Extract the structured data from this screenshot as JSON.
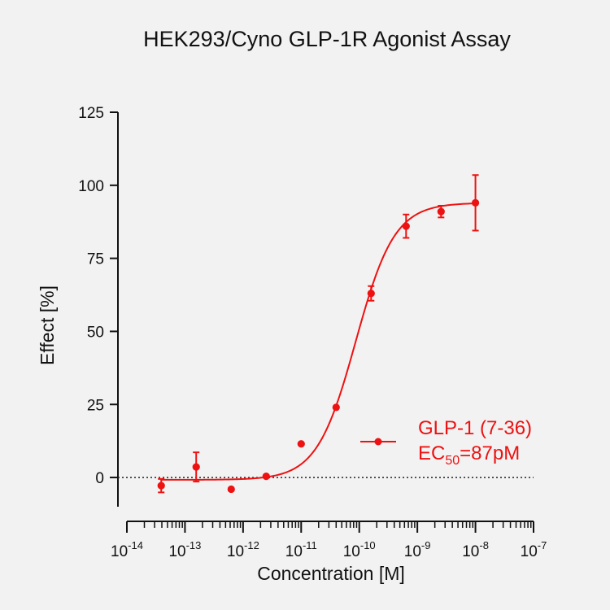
{
  "chart_data": {
    "type": "scatter",
    "title": "HEK293/Cyno GLP-1R Agonist Assay",
    "xlabel": "Concentration [M]",
    "ylabel": "Effect  [%]",
    "x_scale": "log",
    "xlim": [
      1e-14,
      1e-07
    ],
    "ylim": [
      -10,
      125
    ],
    "y_ticks": [
      0,
      25,
      50,
      75,
      100,
      125
    ],
    "x_tick_base": "10",
    "x_tick_exponents": [
      "-14",
      "-13",
      "-12",
      "-11",
      "-10",
      "-9",
      "-8",
      "-7"
    ],
    "zero_reference_line": true,
    "grid": false,
    "color": "#ee1111",
    "legend_position": "right-middle",
    "series": [
      {
        "name": "GLP-1 (7-36)",
        "points": [
          {
            "x": 3.9e-14,
            "y": -2.8,
            "err": 2.3
          },
          {
            "x": 1.56e-13,
            "y": 3.6,
            "err": 5.0
          },
          {
            "x": 6.25e-13,
            "y": -4.0,
            "err": 0
          },
          {
            "x": 2.5e-12,
            "y": 0.4,
            "err": 0
          },
          {
            "x": 1e-11,
            "y": 11.5,
            "err": 0
          },
          {
            "x": 4e-11,
            "y": 24.0,
            "err": 0
          },
          {
            "x": 1.6e-10,
            "y": 63.0,
            "err": 2.5
          },
          {
            "x": 6.4e-10,
            "y": 86.0,
            "err": 4.0
          },
          {
            "x": 2.56e-09,
            "y": 91.0,
            "err": 2.0
          },
          {
            "x": 1e-08,
            "y": 94.0,
            "err": 9.5
          }
        ],
        "fit": {
          "model": "4PL",
          "bottom": -0.8,
          "top": 94.0,
          "ec50": 8.7e-11,
          "hill": 1.3
        }
      }
    ],
    "legend": {
      "label": "GLP-1 (7-36)",
      "ec50_prefix": "EC",
      "ec50_sub": "50",
      "ec50_value": "=87pM"
    }
  }
}
